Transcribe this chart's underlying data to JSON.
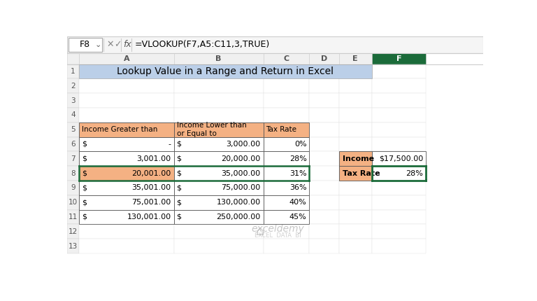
{
  "title": "Lookup Value in a Range and Return in Excel",
  "formula_bar_cell": "F8",
  "formula_bar_formula": "=VLOOKUP(F7,A5:C11,3,TRUE)",
  "col_headers": [
    "A",
    "B",
    "C",
    "D",
    "E",
    "F"
  ],
  "header_bg": "#BBCFE8",
  "cell_bg_orange": "#F4B183",
  "active_col_bg": "#1B6B3A",
  "active_col_text": "#FFFFFF",
  "table_border_color": "#555555",
  "green_border_color": "#1B6B3A",
  "main_table": {
    "headers": [
      "Income Greater than",
      "Income Lower than\nor Equal to",
      "Tax Rate"
    ],
    "col_a_values": [
      "-",
      "3,001.00",
      "20,001.00",
      "35,001.00",
      "75,001.00",
      "130,001.00"
    ],
    "col_b_values": [
      "3,000.00",
      "20,000.00",
      "35,000.00",
      "75,000.00",
      "130,000.00",
      "250,000.00"
    ],
    "col_c_values": [
      "0%",
      "28%",
      "31%",
      "36%",
      "40%",
      "45%"
    ],
    "highlight_row": 2
  },
  "side_table": {
    "rows": [
      [
        "Income",
        "$17,500.00"
      ],
      [
        "Tax Rate",
        "28%"
      ]
    ],
    "green_cell_row": 1
  },
  "watermark_line1": "exceldemy",
  "watermark_line2": "EXCEL  DATA  BI",
  "bg_color": "#FFFFFF"
}
